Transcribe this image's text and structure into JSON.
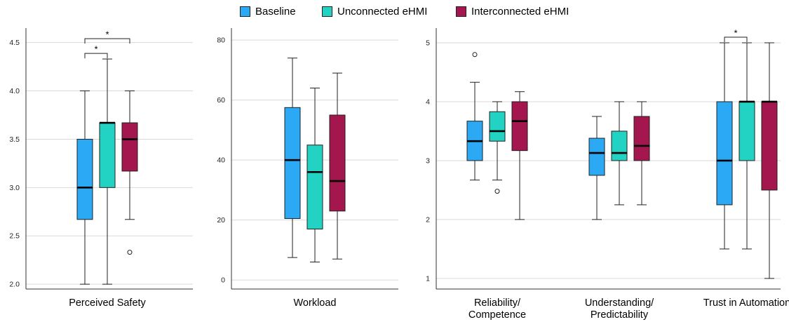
{
  "legend": {
    "items": [
      {
        "label": "Baseline",
        "color": "#2BA9F5"
      },
      {
        "label": "Unconnected eHMI",
        "color": "#22D3C3"
      },
      {
        "label": "Interconnected eHMI",
        "color": "#A3174E"
      }
    ]
  },
  "chart_data": [
    {
      "type": "boxplot",
      "categories": [
        "Perceived Safety"
      ],
      "ylim": [
        1.95,
        4.65
      ],
      "yticks": [
        "2.0",
        "2.5",
        "3.0",
        "3.5",
        "4.0",
        "4.5"
      ],
      "series": [
        {
          "name": "Baseline",
          "boxes": [
            {
              "min": 2.0,
              "q1": 2.67,
              "median": 3.0,
              "q3": 3.5,
              "max": 4.0,
              "outliers": []
            }
          ]
        },
        {
          "name": "Unconnected eHMI",
          "boxes": [
            {
              "min": 2.0,
              "q1": 3.0,
              "median": 3.67,
              "q3": 3.67,
              "max": 4.33,
              "outliers": []
            }
          ]
        },
        {
          "name": "Interconnected eHMI",
          "boxes": [
            {
              "min": 2.67,
              "q1": 3.17,
              "median": 3.5,
              "q3": 3.67,
              "max": 4.0,
              "outliers": [
                2.33
              ]
            }
          ]
        }
      ],
      "significance": [
        {
          "from": "Baseline",
          "to": "Unconnected eHMI",
          "category": "Perceived Safety",
          "label": "*",
          "level": 1
        },
        {
          "from": "Baseline",
          "to": "Interconnected eHMI",
          "category": "Perceived Safety",
          "label": "*",
          "level": 2
        }
      ]
    },
    {
      "type": "boxplot",
      "categories": [
        "Workload"
      ],
      "ylim": [
        -3,
        84
      ],
      "yticks": [
        "0",
        "20",
        "40",
        "60",
        "80"
      ],
      "series": [
        {
          "name": "Baseline",
          "boxes": [
            {
              "min": 7.5,
              "q1": 20.5,
              "median": 40.0,
              "q3": 57.5,
              "max": 74.0,
              "outliers": []
            }
          ]
        },
        {
          "name": "Unconnected eHMI",
          "boxes": [
            {
              "min": 6.0,
              "q1": 17.0,
              "median": 36.0,
              "q3": 45.0,
              "max": 64.0,
              "outliers": []
            }
          ]
        },
        {
          "name": "Interconnected eHMI",
          "boxes": [
            {
              "min": 7.0,
              "q1": 23.0,
              "median": 33.0,
              "q3": 55.0,
              "max": 69.0,
              "outliers": []
            }
          ]
        }
      ],
      "significance": []
    },
    {
      "type": "boxplot",
      "categories": [
        "Reliability/ Competence",
        "Understanding/ Predictability",
        "Trust in Automation"
      ],
      "ylim": [
        0.82,
        5.25
      ],
      "yticks": [
        "1",
        "2",
        "3",
        "4",
        "5"
      ],
      "series": [
        {
          "name": "Baseline",
          "boxes": [
            {
              "min": 2.67,
              "q1": 3.0,
              "median": 3.33,
              "q3": 3.67,
              "max": 4.33,
              "outliers": [
                4.8
              ]
            },
            {
              "min": 2.0,
              "q1": 2.75,
              "median": 3.13,
              "q3": 3.38,
              "max": 3.75,
              "outliers": []
            },
            {
              "min": 1.5,
              "q1": 2.25,
              "median": 3.0,
              "q3": 4.0,
              "max": 5.0,
              "outliers": []
            }
          ]
        },
        {
          "name": "Unconnected eHMI",
          "boxes": [
            {
              "min": 2.67,
              "q1": 3.33,
              "median": 3.5,
              "q3": 3.83,
              "max": 4.0,
              "outliers": [
                2.48
              ]
            },
            {
              "min": 2.25,
              "q1": 3.0,
              "median": 3.13,
              "q3": 3.5,
              "max": 4.0,
              "outliers": []
            },
            {
              "min": 1.5,
              "q1": 3.0,
              "median": 4.0,
              "q3": 4.0,
              "max": 5.0,
              "outliers": []
            }
          ]
        },
        {
          "name": "Interconnected eHMI",
          "boxes": [
            {
              "min": 2.0,
              "q1": 3.17,
              "median": 3.67,
              "q3": 4.0,
              "max": 4.17,
              "outliers": []
            },
            {
              "min": 2.25,
              "q1": 3.0,
              "median": 3.25,
              "q3": 3.75,
              "max": 4.0,
              "outliers": []
            },
            {
              "min": 1.0,
              "q1": 2.5,
              "median": 4.0,
              "q3": 4.0,
              "max": 5.0,
              "outliers": []
            }
          ]
        }
      ],
      "significance": [
        {
          "from": "Baseline",
          "to": "Unconnected eHMI",
          "category": "Trust in Automation",
          "label": "*",
          "level": 1
        }
      ]
    }
  ]
}
